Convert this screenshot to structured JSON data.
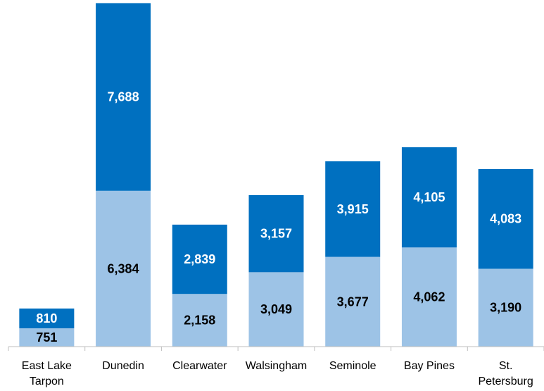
{
  "chart_data": {
    "type": "bar",
    "stacked": true,
    "categories": [
      [
        "East Lake",
        "Tarpon"
      ],
      [
        "Dunedin"
      ],
      [
        "Clearwater"
      ],
      [
        "Walsingham"
      ],
      [
        "Seminole"
      ],
      [
        "Bay Pines"
      ],
      [
        "St.",
        "Petersburg"
      ]
    ],
    "series": [
      {
        "values": [
          751,
          6384,
          2158,
          3049,
          3677,
          4062,
          3190
        ],
        "color": "#9dc3e6",
        "label_color": "#000000"
      },
      {
        "values": [
          810,
          7688,
          2839,
          3157,
          3915,
          4105,
          4083
        ],
        "color": "#0070c0",
        "label_color": "#ffffff"
      }
    ],
    "value_labels": [
      [
        "751",
        "6,384",
        "2,158",
        "3,049",
        "3,677",
        "4,062",
        "3,190"
      ],
      [
        "810",
        "7,688",
        "2,839",
        "3,157",
        "3,915",
        "4,105",
        "4,083"
      ]
    ],
    "ylim": [
      0,
      14200
    ],
    "grid": false,
    "legend": "none",
    "title": "",
    "xlabel": "",
    "ylabel": ""
  }
}
